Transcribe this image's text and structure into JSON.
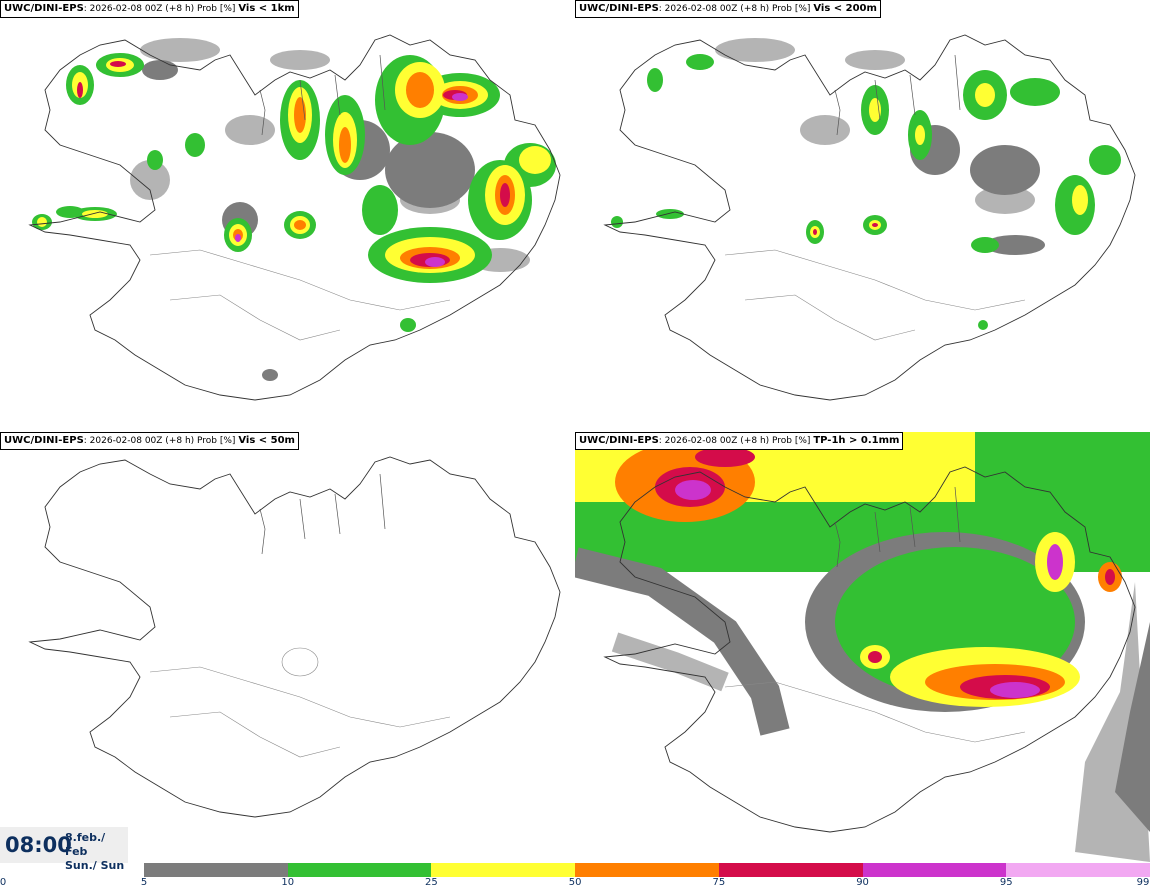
{
  "panels": [
    {
      "model": "UWC/DINI-EPS",
      "run": ": 2026-02-08 00Z (+8 h) Prob [%]",
      "field": "Vis < 1km"
    },
    {
      "model": "UWC/DINI-EPS",
      "run": ": 2026-02-08 00Z (+8 h) Prob [%]",
      "field": "Vis < 200m"
    },
    {
      "model": "UWC/DINI-EPS",
      "run": ": 2026-02-08 00Z (+8 h) Prob [%]",
      "field": "Vis < 50m"
    },
    {
      "model": "UWC/DINI-EPS",
      "run": ": 2026-02-08 00Z (+8 h) Prob [%]",
      "field": "TP-1h > 0.1mm"
    }
  ],
  "timestamp": {
    "time": "08:00",
    "date_line1": "8.feb./ Feb",
    "date_line2": "Sun./ Sun"
  },
  "colorbar": {
    "colors": [
      "#b4b4b4",
      "#7c7c7c",
      "#33c033",
      "#ffff33",
      "#ff7f00",
      "#d40c4a",
      "#cc33cc",
      "#f2a8f2"
    ],
    "ticks": [
      "0",
      "5",
      "10",
      "25",
      "50",
      "75",
      "90",
      "95",
      "99"
    ]
  }
}
